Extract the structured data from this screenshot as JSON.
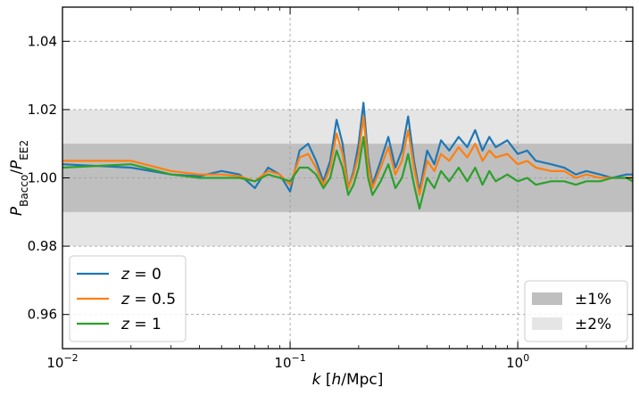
{
  "chart_data": {
    "type": "line",
    "xscale": "log",
    "xlim": [
      0.01,
      3.2
    ],
    "ylim": [
      0.95,
      1.05
    ],
    "xlabel": {
      "italic_var": "k",
      "open": " [",
      "unit_italic": "h",
      "unit_rest": "/Mpc]"
    },
    "ylabel": {
      "P1": "P",
      "sub1": "Bacco",
      "slash": "/",
      "P2": "P",
      "sub2": "EE2"
    },
    "x_ticks": [
      {
        "value": 0.01,
        "base": "10",
        "exp": "−2"
      },
      {
        "value": 0.1,
        "base": "10",
        "exp": "−1"
      },
      {
        "value": 1,
        "base": "10",
        "exp": "0"
      }
    ],
    "y_ticks": [
      {
        "value": 0.96,
        "label": "0.96"
      },
      {
        "value": 0.98,
        "label": "0.98"
      },
      {
        "value": 1.0,
        "label": "1.00"
      },
      {
        "value": 1.02,
        "label": "1.02"
      },
      {
        "value": 1.04,
        "label": "1.04"
      }
    ],
    "grid": true,
    "bands": [
      {
        "name": "±2%",
        "lower": 0.98,
        "upper": 1.02,
        "color": "#e5e5e5"
      },
      {
        "name": "±1%",
        "lower": 0.99,
        "upper": 1.01,
        "color": "#bfbfbf"
      }
    ],
    "band_legend_placement": "bottom-right",
    "series_legend_placement": "bottom-left",
    "series": [
      {
        "name": "z = 0",
        "var": "z",
        "eq": " = ",
        "val": "0",
        "color": "#1f77b4",
        "points": [
          [
            0.01,
            1.004
          ],
          [
            0.02,
            1.003
          ],
          [
            0.03,
            1.001
          ],
          [
            0.04,
            1.0005
          ],
          [
            0.05,
            1.002
          ],
          [
            0.06,
            1.001
          ],
          [
            0.07,
            0.997
          ],
          [
            0.08,
            1.003
          ],
          [
            0.09,
            1.001
          ],
          [
            0.1,
            0.996
          ],
          [
            0.11,
            1.008
          ],
          [
            0.12,
            1.01
          ],
          [
            0.13,
            1.005
          ],
          [
            0.14,
            0.999
          ],
          [
            0.15,
            1.005
          ],
          [
            0.16,
            1.017
          ],
          [
            0.17,
            1.01
          ],
          [
            0.18,
            0.997
          ],
          [
            0.19,
            1.002
          ],
          [
            0.2,
            1.01
          ],
          [
            0.21,
            1.022
          ],
          [
            0.22,
            1.006
          ],
          [
            0.23,
            0.998
          ],
          [
            0.25,
            1.005
          ],
          [
            0.27,
            1.012
          ],
          [
            0.29,
            1.003
          ],
          [
            0.31,
            1.008
          ],
          [
            0.33,
            1.018
          ],
          [
            0.35,
            1.005
          ],
          [
            0.37,
            0.996
          ],
          [
            0.4,
            1.008
          ],
          [
            0.43,
            1.004
          ],
          [
            0.46,
            1.011
          ],
          [
            0.5,
            1.008
          ],
          [
            0.55,
            1.012
          ],
          [
            0.6,
            1.009
          ],
          [
            0.65,
            1.014
          ],
          [
            0.7,
            1.008
          ],
          [
            0.75,
            1.012
          ],
          [
            0.8,
            1.009
          ],
          [
            0.9,
            1.011
          ],
          [
            1.0,
            1.007
          ],
          [
            1.1,
            1.008
          ],
          [
            1.2,
            1.005
          ],
          [
            1.4,
            1.004
          ],
          [
            1.6,
            1.003
          ],
          [
            1.8,
            1.001
          ],
          [
            2.0,
            1.002
          ],
          [
            2.3,
            1.001
          ],
          [
            2.6,
            1.0
          ],
          [
            3.0,
            1.001
          ],
          [
            3.2,
            1.001
          ]
        ]
      },
      {
        "name": "z = 0.5",
        "var": "z",
        "eq": " = ",
        "val": "0.5",
        "color": "#ff7f0e",
        "points": [
          [
            0.01,
            1.005
          ],
          [
            0.02,
            1.005
          ],
          [
            0.03,
            1.002
          ],
          [
            0.04,
            1.001
          ],
          [
            0.05,
            1.001
          ],
          [
            0.06,
            1.0005
          ],
          [
            0.07,
            0.999
          ],
          [
            0.08,
            1.002
          ],
          [
            0.09,
            1.001
          ],
          [
            0.1,
            0.998
          ],
          [
            0.11,
            1.006
          ],
          [
            0.12,
            1.007
          ],
          [
            0.13,
            1.003
          ],
          [
            0.14,
            0.998
          ],
          [
            0.15,
            1.003
          ],
          [
            0.16,
            1.013
          ],
          [
            0.17,
            1.007
          ],
          [
            0.18,
            0.997
          ],
          [
            0.19,
            1.001
          ],
          [
            0.2,
            1.007
          ],
          [
            0.21,
            1.018
          ],
          [
            0.22,
            1.004
          ],
          [
            0.23,
            0.997
          ],
          [
            0.25,
            1.003
          ],
          [
            0.27,
            1.009
          ],
          [
            0.29,
            1.001
          ],
          [
            0.31,
            1.005
          ],
          [
            0.33,
            1.014
          ],
          [
            0.35,
            1.003
          ],
          [
            0.37,
            0.995
          ],
          [
            0.4,
            1.005
          ],
          [
            0.43,
            1.002
          ],
          [
            0.46,
            1.007
          ],
          [
            0.5,
            1.005
          ],
          [
            0.55,
            1.009
          ],
          [
            0.6,
            1.006
          ],
          [
            0.65,
            1.01
          ],
          [
            0.7,
            1.005
          ],
          [
            0.75,
            1.008
          ],
          [
            0.8,
            1.006
          ],
          [
            0.9,
            1.007
          ],
          [
            1.0,
            1.004
          ],
          [
            1.1,
            1.005
          ],
          [
            1.2,
            1.003
          ],
          [
            1.4,
            1.002
          ],
          [
            1.6,
            1.002
          ],
          [
            1.8,
            1.0
          ],
          [
            2.0,
            1.001
          ],
          [
            2.3,
            1.0
          ],
          [
            2.6,
            1.0
          ],
          [
            3.0,
            1.0
          ],
          [
            3.2,
            1.0
          ]
        ]
      },
      {
        "name": "z = 1",
        "var": "z",
        "eq": " = ",
        "val": "1",
        "color": "#2ca02c",
        "points": [
          [
            0.01,
            1.003
          ],
          [
            0.02,
            1.004
          ],
          [
            0.03,
            1.001
          ],
          [
            0.04,
            1.0
          ],
          [
            0.05,
            1.0
          ],
          [
            0.06,
            1.0
          ],
          [
            0.07,
            0.999
          ],
          [
            0.08,
            1.001
          ],
          [
            0.09,
            1.0
          ],
          [
            0.1,
            0.999
          ],
          [
            0.11,
            1.003
          ],
          [
            0.12,
            1.003
          ],
          [
            0.13,
            1.001
          ],
          [
            0.14,
            0.997
          ],
          [
            0.15,
            1.0
          ],
          [
            0.16,
            1.008
          ],
          [
            0.17,
            1.003
          ],
          [
            0.18,
            0.995
          ],
          [
            0.19,
            0.998
          ],
          [
            0.2,
            1.003
          ],
          [
            0.21,
            1.012
          ],
          [
            0.22,
            1.0
          ],
          [
            0.23,
            0.995
          ],
          [
            0.25,
            0.999
          ],
          [
            0.27,
            1.004
          ],
          [
            0.29,
            0.997
          ],
          [
            0.31,
            1.0
          ],
          [
            0.33,
            1.007
          ],
          [
            0.35,
            0.998
          ],
          [
            0.37,
            0.991
          ],
          [
            0.4,
            1.0
          ],
          [
            0.43,
            0.997
          ],
          [
            0.46,
            1.002
          ],
          [
            0.5,
            0.999
          ],
          [
            0.55,
            1.003
          ],
          [
            0.6,
            0.999
          ],
          [
            0.65,
            1.003
          ],
          [
            0.7,
            0.998
          ],
          [
            0.75,
            1.002
          ],
          [
            0.8,
            0.999
          ],
          [
            0.9,
            1.001
          ],
          [
            1.0,
            0.999
          ],
          [
            1.1,
            1.0
          ],
          [
            1.2,
            0.998
          ],
          [
            1.4,
            0.999
          ],
          [
            1.6,
            0.999
          ],
          [
            1.8,
            0.998
          ],
          [
            2.0,
            0.999
          ],
          [
            2.3,
            0.999
          ],
          [
            2.6,
            1.0
          ],
          [
            3.0,
            1.0
          ],
          [
            3.2,
            0.999
          ]
        ]
      }
    ]
  }
}
